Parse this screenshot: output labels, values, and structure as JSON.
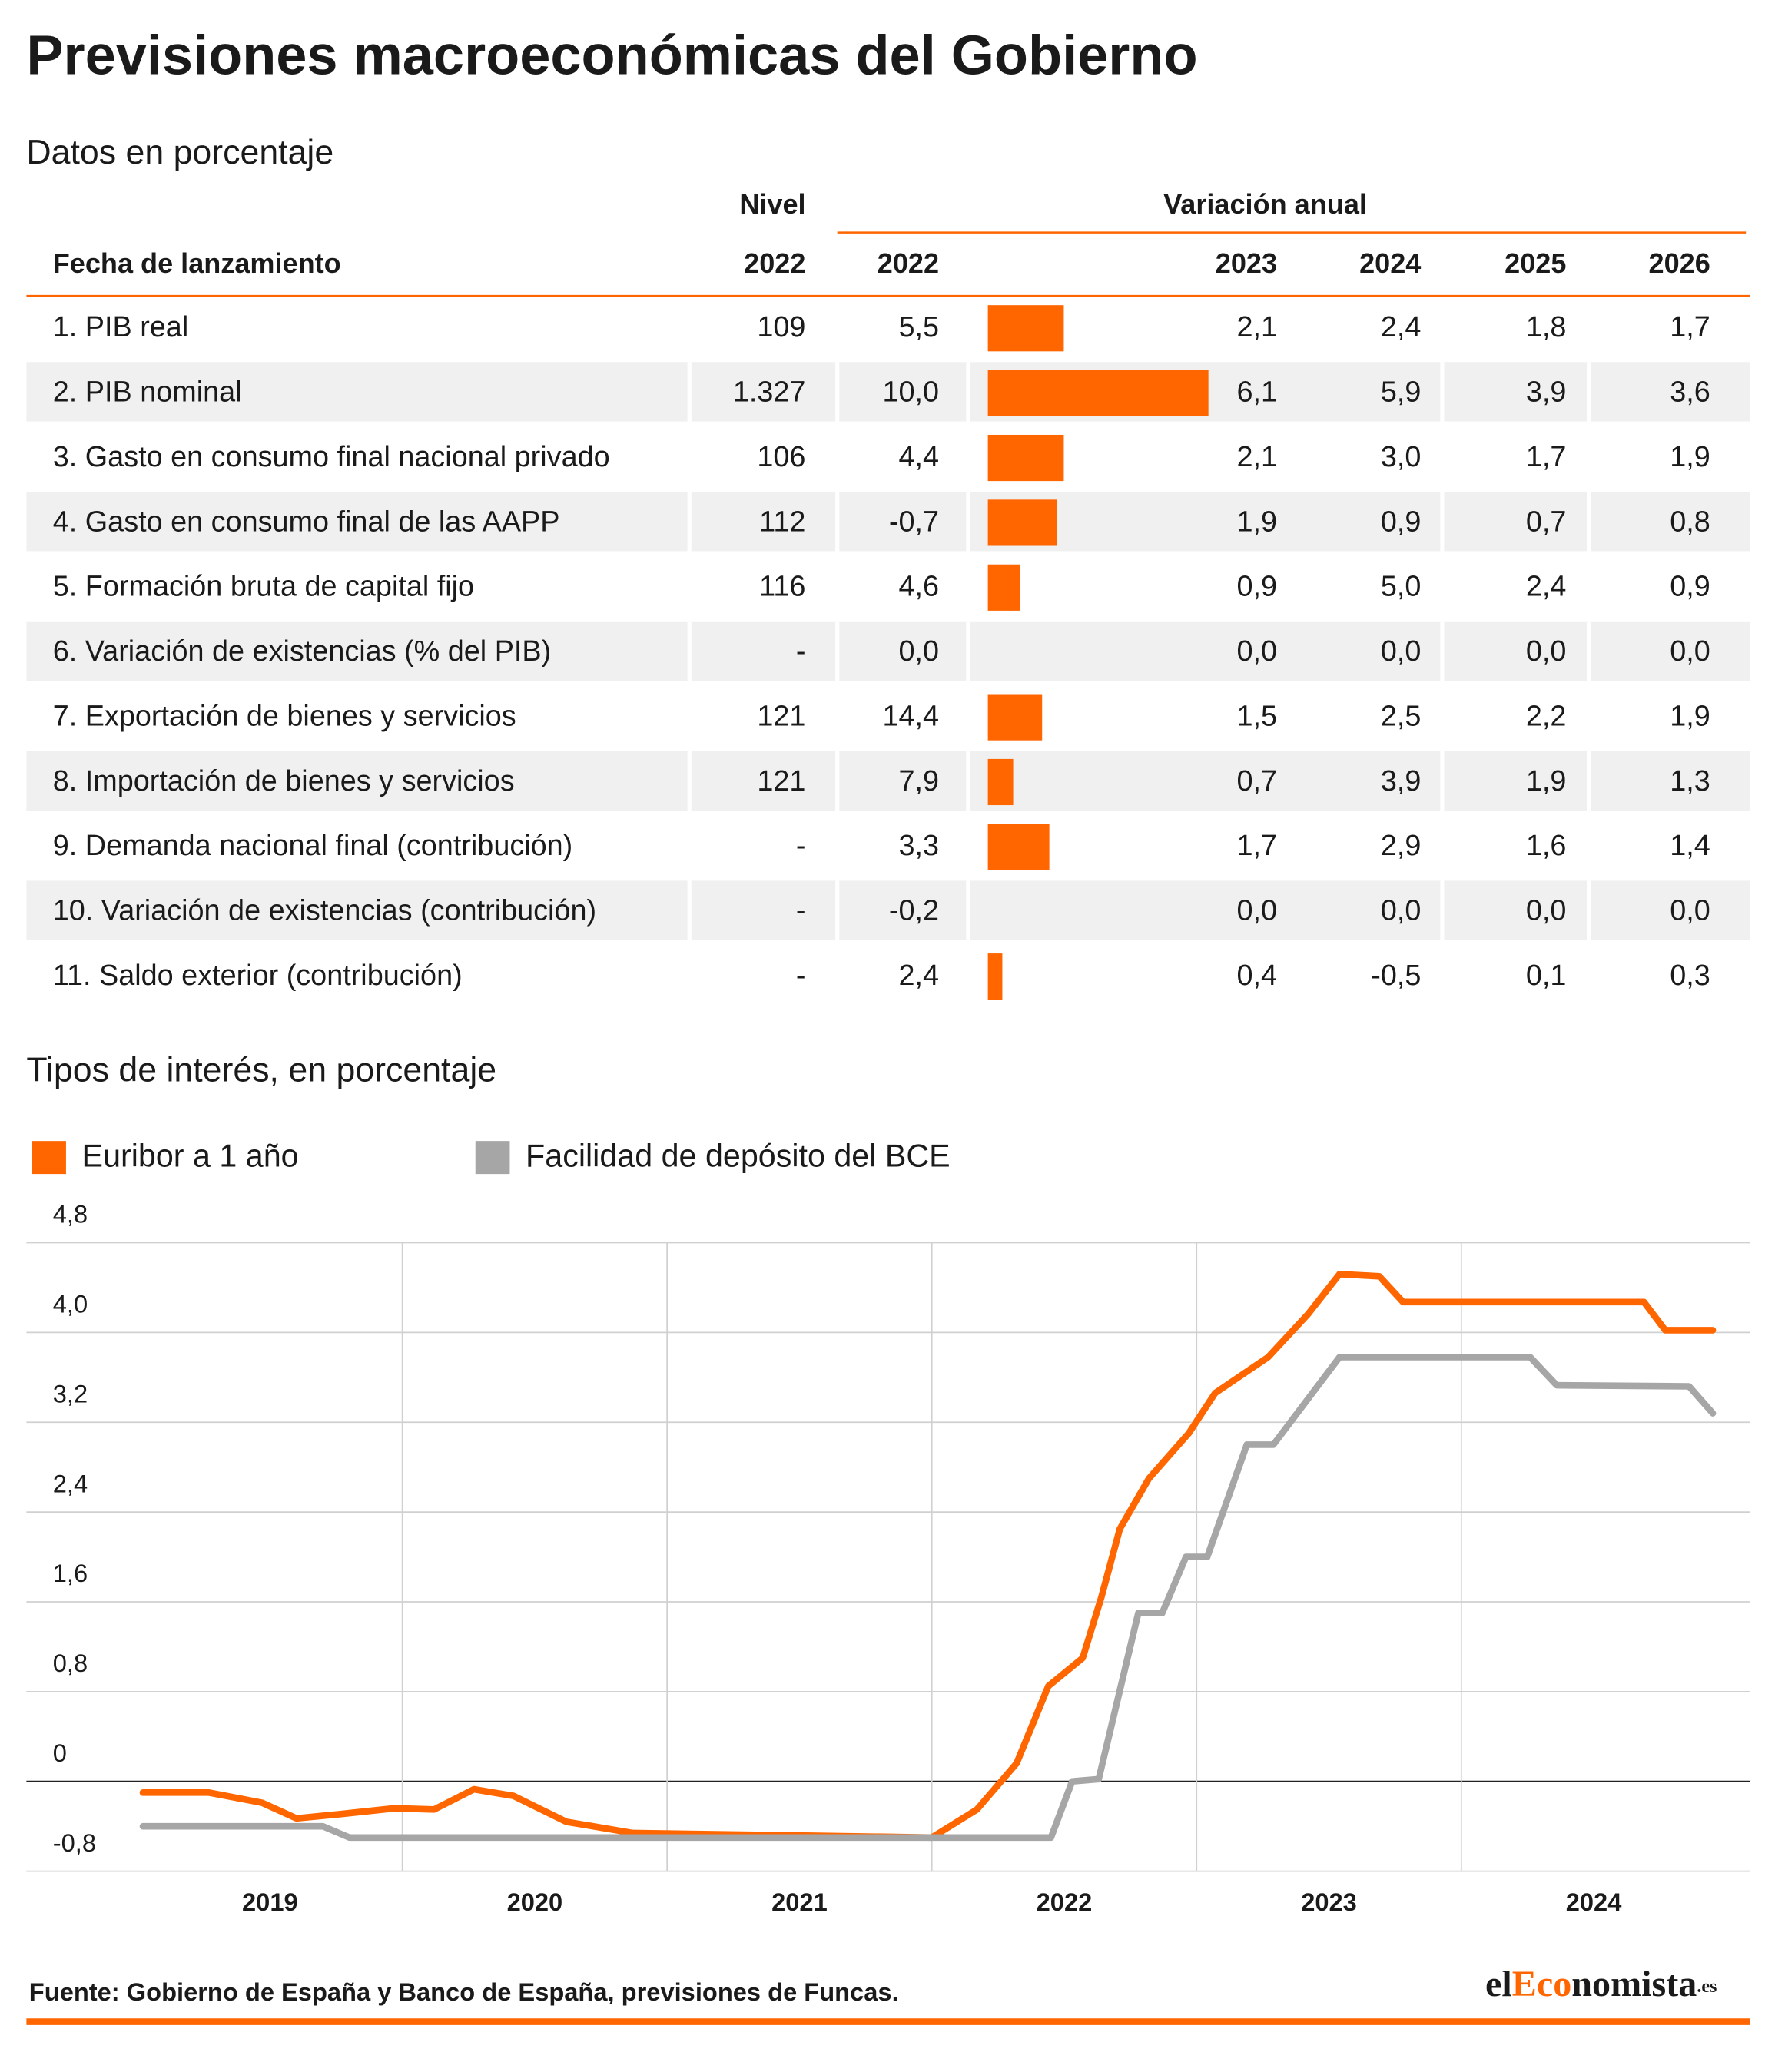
{
  "title": "Previsiones macroeconómicas del Gobierno",
  "subtitle": "Datos en porcentaje",
  "table": {
    "level_header": "Nivel",
    "variation_header": "Variación anual",
    "header": [
      "Fecha de lanzamiento",
      "2022",
      "2022",
      "2023",
      "2024",
      "2025",
      "2026"
    ],
    "rows": [
      [
        "109",
        "5,5",
        "2,4",
        "1,8",
        "1,7"
      ],
      [
        "1.327",
        "10,0",
        "5,9",
        "3,9",
        "3,6"
      ],
      [
        "106",
        "4,4",
        "3,0",
        "1,7",
        "1,9"
      ],
      [
        "112",
        "-0,7",
        "0,9",
        "0,7",
        "0,8"
      ],
      [
        "116",
        "4,6",
        "5,0",
        "2,4",
        "0,9"
      ],
      [
        "-",
        "0,0",
        "0,0",
        "0,0",
        "0,0"
      ],
      [
        "121",
        "14,4",
        "2,5",
        "2,2",
        "1,9"
      ],
      [
        "121",
        "7,9",
        "3,9",
        "1,9",
        "1,3"
      ],
      [
        "-",
        "3,3",
        "2,9",
        "1,6",
        "1,4"
      ],
      [
        "-",
        "-0,2",
        "0,0",
        "0,0",
        "0,0"
      ],
      [
        "-",
        "2,4",
        "-0,5",
        "0,1",
        "0,3"
      ]
    ]
  },
  "chart_data": [
    {
      "type": "bar",
      "categories": [
        "1. PIB real",
        "2. PIB nominal",
        "3. Gasto en consumo final nacional privado",
        "4. Gasto en consumo final de las AAPP",
        "5. Formación bruta de capital fijo",
        "6. Variación de existencias (% del PIB)",
        "7. Exportación de bienes y servicios",
        "8. Importación de bienes y servicios",
        "9. Demanda nacional final (contribución)",
        "10. Variación de existencias (contribución)",
        "11. Saldo exterior (contribución)"
      ],
      "values": [
        2.1,
        6.1,
        2.1,
        1.9,
        0.9,
        0,
        1.5,
        0.7,
        1.7,
        0,
        0.4
      ],
      "value_labels": [
        "2,1",
        "6,1",
        "2,1",
        "1,9",
        "0,9",
        "0,0",
        "1,5",
        "0,7",
        "1,7",
        "0,0",
        "0,4"
      ],
      "color": "#ff6600"
    },
    {
      "type": "line",
      "title": "Tipos de interés, en porcentaje",
      "series": [
        {
          "name": "Euribor a 1 año",
          "color": "#ff6600",
          "x": [
            2019.02,
            2019.27,
            2019.47,
            2019.6,
            2019.77,
            2019.97,
            2020.12,
            2020.27,
            2020.42,
            2020.62,
            2020.87,
            2022.0,
            2022.17,
            2022.32,
            2022.44,
            2022.57,
            2022.64,
            2022.71,
            2022.82,
            2022.97,
            2023.07,
            2023.27,
            2023.42,
            2023.54,
            2023.69,
            2023.78,
            2024.69,
            2024.77,
            2024.95
          ],
          "values": [
            -0.1,
            -0.1,
            -0.19,
            -0.33,
            -0.29,
            -0.24,
            -0.25,
            -0.07,
            -0.13,
            -0.36,
            -0.46,
            -0.5,
            -0.25,
            0.16,
            0.85,
            1.1,
            1.64,
            2.25,
            2.7,
            3.1,
            3.46,
            3.78,
            4.16,
            4.52,
            4.5,
            4.27,
            4.27,
            4.02,
            4.02
          ]
        },
        {
          "name": "Facilidad de depósito del BCE",
          "color": "#a6a6a6",
          "x": [
            2019.02,
            2019.7,
            2019.8,
            2022.45,
            2022.53,
            2022.63,
            2022.71,
            2022.78,
            2022.87,
            2022.96,
            2023.04,
            2023.19,
            2023.29,
            2023.54,
            2024.26,
            2024.36,
            2024.86,
            2024.95
          ],
          "values": [
            -0.4,
            -0.4,
            -0.5,
            -0.5,
            0,
            0.02,
            0.81,
            1.5,
            1.5,
            2.0,
            2.0,
            3.0,
            3.0,
            3.78,
            3.78,
            3.53,
            3.52,
            3.28
          ]
        }
      ],
      "xlim": [
        2018.58,
        2025.09
      ],
      "xticks": [
        {
          "value": 2019.5,
          "label": "2019"
        },
        {
          "value": 2020.5,
          "label": "2020"
        },
        {
          "value": 2021.5,
          "label": "2021"
        },
        {
          "value": 2022.5,
          "label": "2022"
        },
        {
          "value": 2023.5,
          "label": "2023"
        },
        {
          "value": 2024.5,
          "label": "2024"
        }
      ],
      "xgrid": [
        2020,
        2021,
        2022,
        2023,
        2024
      ],
      "ylim": [
        -0.8,
        4.8
      ],
      "yticks": [
        {
          "value": -0.8,
          "label": "-0,8"
        },
        0,
        {
          "value": 0.8,
          "label": "0,8"
        },
        {
          "value": 1.6,
          "label": "1,6"
        },
        {
          "value": 2.4,
          "label": "2,4"
        },
        {
          "value": 3.2,
          "label": "3,2"
        },
        {
          "value": 4.0,
          "label": "4,0"
        },
        {
          "value": 4.8,
          "label": "4,8"
        }
      ],
      "grid": true,
      "legend": "top-left"
    }
  ],
  "source": "Fuente: Gobierno de España y Banco de España, previsiones de Funcas.",
  "logo": [
    "el",
    "Eco",
    "nomista",
    ".es"
  ]
}
